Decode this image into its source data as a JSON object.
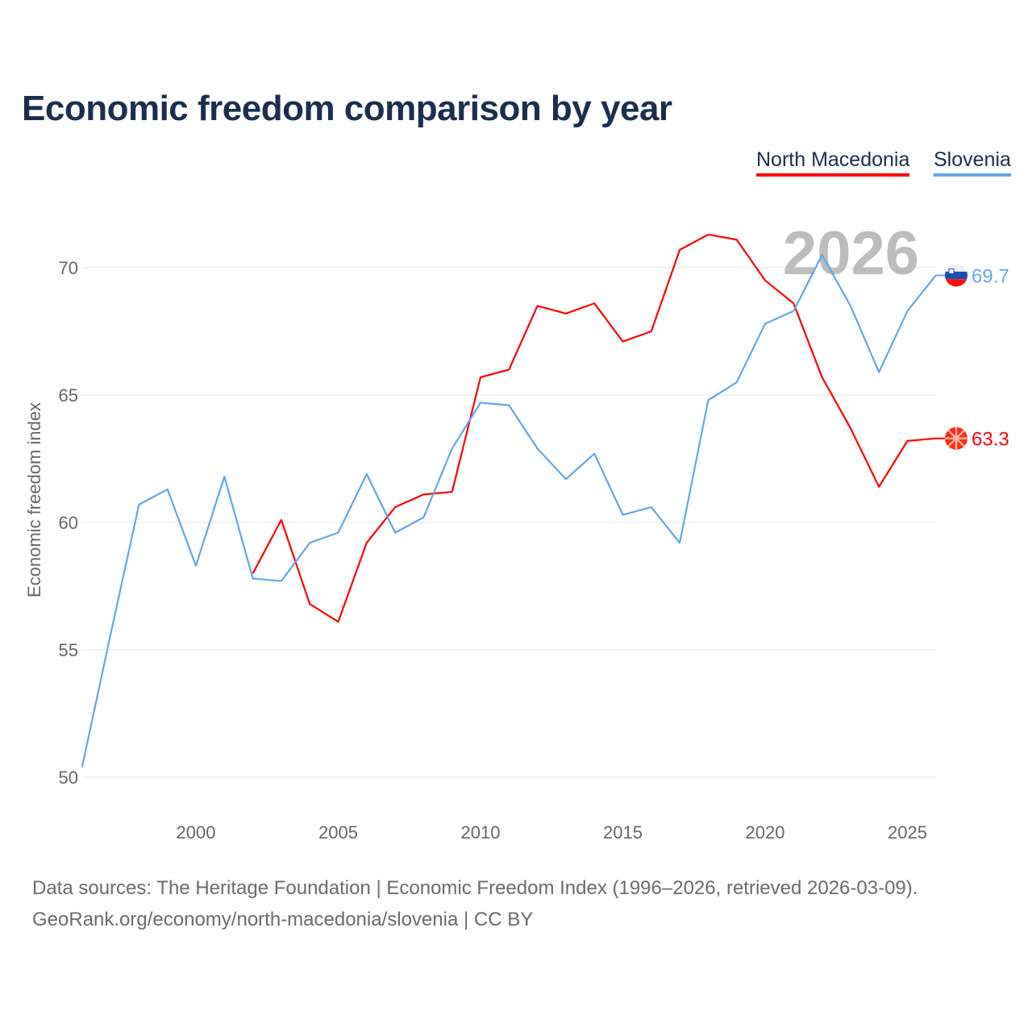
{
  "title": "Economic freedom comparison by year",
  "footer": {
    "line1": "Data sources: The Heritage Foundation | Economic Freedom Index (1996–2026, retrieved 2026-03-09).",
    "line2": "GeoRank.org/economy/north-macedonia/slovenia | CC BY"
  },
  "chart_data": {
    "type": "line",
    "title": "Economic freedom comparison by year",
    "xlabel": "",
    "ylabel": "Economic freedom index",
    "xlim": [
      1996,
      2026
    ],
    "ylim": [
      50,
      72
    ],
    "xticks": [
      2000,
      2005,
      2010,
      2015,
      2020,
      2025
    ],
    "yticks": [
      50,
      55,
      60,
      65,
      70
    ],
    "grid": true,
    "legend_position": "top-right",
    "year_label": "2026",
    "series": [
      {
        "name": "North Macedonia",
        "color": "#ff0000",
        "end_label": "63.3",
        "flag": "north-macedonia-flag",
        "x": [
          2002,
          2003,
          2004,
          2005,
          2006,
          2007,
          2008,
          2009,
          2010,
          2011,
          2012,
          2013,
          2014,
          2015,
          2016,
          2017,
          2018,
          2019,
          2020,
          2021,
          2022,
          2023,
          2024,
          2025,
          2026
        ],
        "values": [
          58.0,
          60.1,
          56.8,
          56.1,
          59.2,
          60.6,
          61.1,
          61.2,
          65.7,
          66.0,
          68.5,
          68.2,
          68.6,
          67.1,
          67.5,
          70.7,
          71.3,
          71.1,
          69.5,
          68.6,
          65.7,
          63.7,
          61.4,
          63.2,
          63.3
        ]
      },
      {
        "name": "Slovenia",
        "color": "#64a6e8",
        "end_label": "69.7",
        "flag": "slovenia-flag",
        "x": [
          1996,
          1997,
          1998,
          1999,
          2000,
          2001,
          2002,
          2003,
          2004,
          2005,
          2006,
          2007,
          2008,
          2009,
          2010,
          2011,
          2012,
          2013,
          2014,
          2015,
          2016,
          2017,
          2018,
          2019,
          2020,
          2021,
          2022,
          2023,
          2024,
          2025,
          2026
        ],
        "values": [
          50.4,
          55.6,
          60.7,
          61.3,
          58.3,
          61.8,
          57.8,
          57.7,
          59.2,
          59.6,
          61.9,
          59.6,
          60.2,
          62.9,
          64.7,
          64.6,
          62.9,
          61.7,
          62.7,
          60.3,
          60.6,
          59.2,
          64.8,
          65.5,
          67.8,
          68.3,
          70.5,
          68.5,
          65.9,
          68.3,
          69.7
        ]
      }
    ]
  }
}
